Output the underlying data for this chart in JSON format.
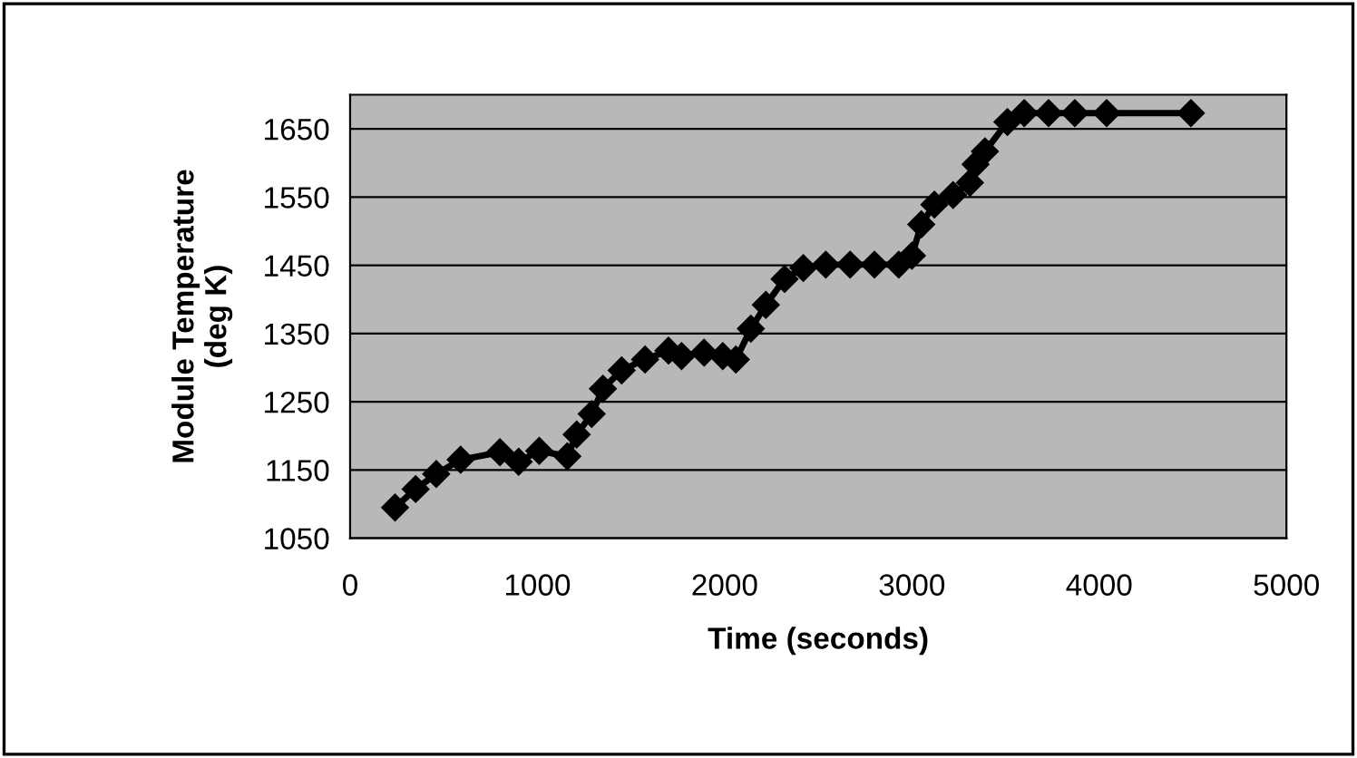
{
  "chart_data": {
    "type": "line",
    "xlabel": "Time (seconds)",
    "ylabel": "Module Temperature\n(deg K)",
    "xlim": [
      0,
      5000
    ],
    "xticks": [
      0,
      1000,
      2000,
      3000,
      4000,
      5000
    ],
    "ylim": [
      1050,
      1700
    ],
    "yticks": [
      1050,
      1150,
      1250,
      1350,
      1450,
      1550,
      1650
    ],
    "grid": "y",
    "marker": "diamond",
    "line_style": "solid",
    "series": [
      {
        "color": "#000000",
        "x": [
          240,
          350,
          460,
          590,
          800,
          900,
          1010,
          1160,
          1210,
          1290,
          1350,
          1450,
          1575,
          1700,
          1770,
          1890,
          1990,
          2060,
          2140,
          2220,
          2320,
          2420,
          2540,
          2670,
          2800,
          2930,
          3000,
          3050,
          3120,
          3220,
          3310,
          3340,
          3390,
          3510,
          3600,
          3730,
          3870,
          4040,
          4490
        ],
        "values": [
          1095,
          1122,
          1144,
          1165,
          1176,
          1162,
          1178,
          1170,
          1202,
          1232,
          1269,
          1296,
          1312,
          1325,
          1317,
          1322,
          1317,
          1312,
          1357,
          1392,
          1430,
          1446,
          1451,
          1451,
          1451,
          1451,
          1464,
          1510,
          1539,
          1553,
          1571,
          1598,
          1617,
          1660,
          1673,
          1673,
          1673,
          1673,
          1673
        ]
      }
    ]
  }
}
